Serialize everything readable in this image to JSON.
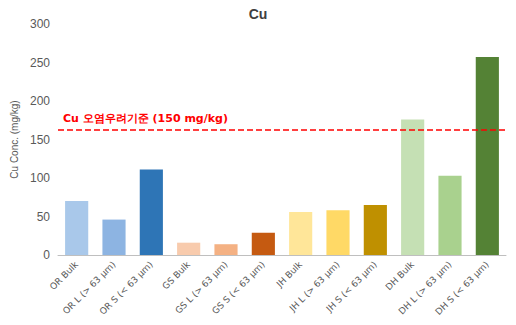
{
  "chart_data": {
    "type": "bar",
    "title": "Cu",
    "y_label": "Cu Conc. (mg/kg)",
    "categories": [
      "OR Bulk",
      "OR L (> 63 μm)",
      "OR S (< 63 μm)",
      "GS Bulk",
      "GS L (> 63 μm)",
      "GS S (< 63 μm)",
      "JH Bulk",
      "JH L (> 63 μm)",
      "JH S (< 63 μm)",
      "DH Bulk",
      "DH L (> 63 μm)",
      "DH S (< 63 μm)"
    ],
    "values": [
      70,
      46,
      111,
      16,
      14,
      29,
      56,
      58,
      65,
      176,
      103,
      257
    ],
    "colors": [
      "#a9c8ea",
      "#8db4e2",
      "#2e75b6",
      "#f8cbad",
      "#f4b183",
      "#c55a11",
      "#ffe699",
      "#ffd966",
      "#bf9000",
      "#c5e0b4",
      "#a9d18e",
      "#548235"
    ],
    "ylim": [
      0,
      300
    ],
    "yticks": [
      0,
      50,
      100,
      150,
      200,
      250,
      300
    ],
    "grid": false,
    "annotations": [
      {
        "text": "Cu 오염우려기준 (150 mg/kg)",
        "y": 163,
        "color": "#ff0000",
        "line_style": "dashed"
      }
    ]
  }
}
